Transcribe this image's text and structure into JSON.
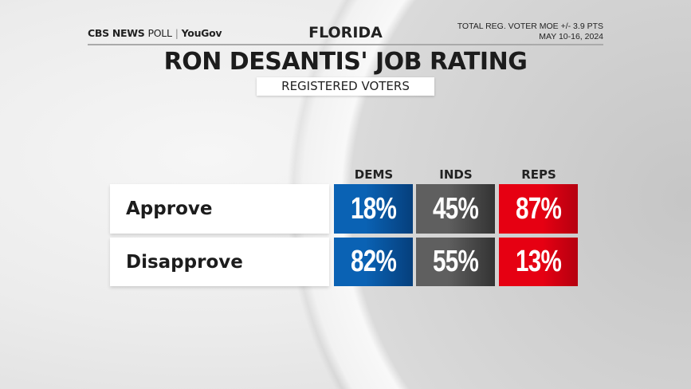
{
  "header": {
    "logo": "CBS NEWS POLL | YouGov",
    "logo_parts": [
      "CBS NEWS",
      "POLL",
      "|",
      "YouGov"
    ],
    "state": "FLORIDA",
    "moe": "TOTAL REG. VOTER MOE +/- 3.9 PTS",
    "dates": "MAY 10-16, 2024"
  },
  "chart_data": {
    "type": "table",
    "title": "RON DESANTIS' JOB RATING",
    "subtitle": "REGISTERED VOTERS",
    "columns": [
      "DEMS",
      "INDS",
      "REPS"
    ],
    "rows": [
      {
        "label": "Approve",
        "values": [
          "18%",
          "45%",
          "87%"
        ]
      },
      {
        "label": "Disapprove",
        "values": [
          "82%",
          "55%",
          "13%"
        ]
      }
    ],
    "colors": {
      "DEMS": "#0a62b4",
      "INDS": "#5f5f5f",
      "REPS": "#e60012"
    }
  }
}
